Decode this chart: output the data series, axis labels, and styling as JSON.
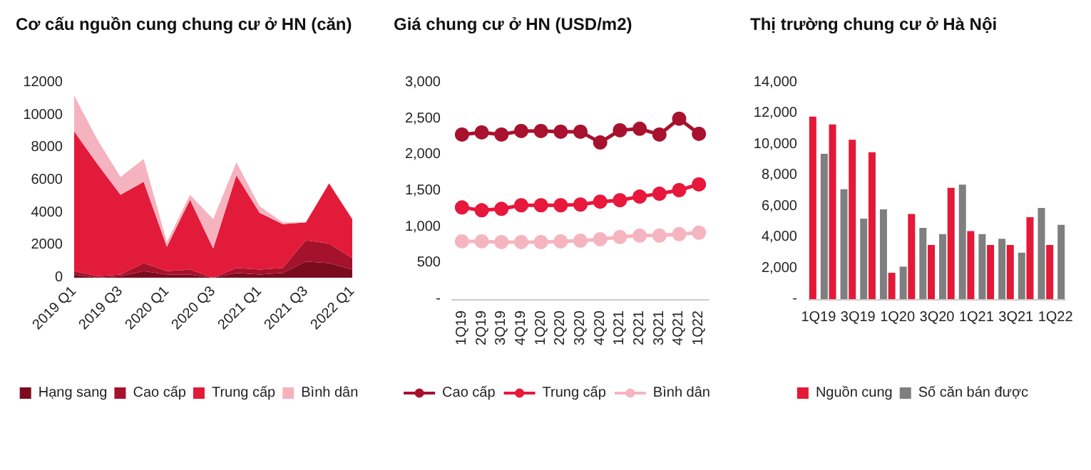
{
  "chart_data": [
    {
      "type": "area",
      "title": "Cơ cấu nguồn cung chung cư ở HN (căn)",
      "stacked": true,
      "categories": [
        "2019 Q1",
        null,
        "2019 Q3",
        null,
        "2020 Q1",
        null,
        "2020 Q3",
        null,
        "2021 Q1",
        null,
        "2021 Q3",
        null,
        "2022 Q1"
      ],
      "series": [
        {
          "name": "Hạng sang",
          "color": "#7b0c1e",
          "values": [
            200,
            0,
            100,
            400,
            200,
            200,
            0,
            300,
            200,
            300,
            1000,
            900,
            500
          ]
        },
        {
          "name": "Cao cấp",
          "color": "#a5122b",
          "values": [
            200,
            100,
            100,
            500,
            200,
            300,
            0,
            300,
            300,
            300,
            1300,
            1200,
            700
          ]
        },
        {
          "name": "Trung cấp",
          "color": "#e31b3a",
          "values": [
            8600,
            6900,
            4900,
            5000,
            1500,
            4300,
            1800,
            5700,
            3500,
            2700,
            1100,
            3700,
            2400
          ]
        },
        {
          "name": "Bình dân",
          "color": "#f5b3bf",
          "values": [
            2200,
            1500,
            1100,
            1400,
            300,
            300,
            1800,
            800,
            400,
            100,
            0,
            0,
            0
          ]
        }
      ],
      "ylim": [
        0,
        12000
      ],
      "yticks": [
        0,
        2000,
        4000,
        6000,
        8000,
        10000,
        12000
      ],
      "grid": false,
      "legend": "bottom"
    },
    {
      "type": "line",
      "title": "Giá chung cư ở HN (USD/m2)",
      "categories": [
        "1Q19",
        "2Q19",
        "3Q19",
        "4Q19",
        "1Q20",
        "2Q20",
        "3Q20",
        "4Q20",
        "1Q21",
        "2Q21",
        "3Q21",
        "4Q21",
        "1Q22"
      ],
      "series": [
        {
          "name": "Cao cấp",
          "color": "#a8122e",
          "values": [
            2280,
            2310,
            2280,
            2330,
            2330,
            2320,
            2320,
            2170,
            2340,
            2360,
            2280,
            2500,
            2290
          ]
        },
        {
          "name": "Trung cấp",
          "color": "#e8173c",
          "values": [
            1270,
            1230,
            1250,
            1300,
            1300,
            1300,
            1310,
            1350,
            1370,
            1420,
            1460,
            1510,
            1590
          ]
        },
        {
          "name": "Bình dân",
          "color": "#f5b5c0",
          "values": [
            800,
            800,
            790,
            790,
            790,
            800,
            810,
            830,
            860,
            880,
            880,
            900,
            920
          ]
        }
      ],
      "ylim": [
        0,
        3000
      ],
      "yticks": [
        {
          "value": 0,
          "label": "-"
        },
        {
          "value": 500,
          "label": "500"
        },
        {
          "value": 1000,
          "label": "1,000"
        },
        {
          "value": 1500,
          "label": "1,500"
        },
        {
          "value": 2000,
          "label": "2,000"
        },
        {
          "value": 2500,
          "label": "2,500"
        },
        {
          "value": 3000,
          "label": "3,000"
        }
      ],
      "grid": false,
      "legend": "bottom",
      "marker": "circle",
      "line_style": "solid"
    },
    {
      "type": "bar",
      "title": "Thị trường chung cư ở Hà Nội",
      "categories": [
        "1Q19",
        null,
        "3Q19",
        null,
        "1Q20",
        null,
        "3Q20",
        null,
        "1Q21",
        null,
        "3Q21",
        null,
        "1Q22"
      ],
      "series": [
        {
          "name": "Nguồn cung",
          "color": "#e31937",
          "values": [
            11800,
            11300,
            10300,
            9500,
            1700,
            5500,
            3500,
            7200,
            4400,
            3500,
            3500,
            5300,
            3500
          ]
        },
        {
          "name": "Số căn bán được",
          "color": "#7f7f7f",
          "values": [
            9400,
            7100,
            5200,
            5800,
            2100,
            4600,
            4200,
            7400,
            4200,
            3900,
            3000,
            5900,
            4800
          ]
        }
      ],
      "ylim": [
        0,
        14000
      ],
      "yticks": [
        {
          "value": 0,
          "label": "-"
        },
        {
          "value": 2000,
          "label": "2,000"
        },
        {
          "value": 4000,
          "label": "4,000"
        },
        {
          "value": 6000,
          "label": "6,000"
        },
        {
          "value": 8000,
          "label": "8,000"
        },
        {
          "value": 10000,
          "label": "10,000"
        },
        {
          "value": 12000,
          "label": "12,000"
        },
        {
          "value": 14000,
          "label": "14,000"
        }
      ],
      "grid": false,
      "legend": "bottom"
    }
  ]
}
